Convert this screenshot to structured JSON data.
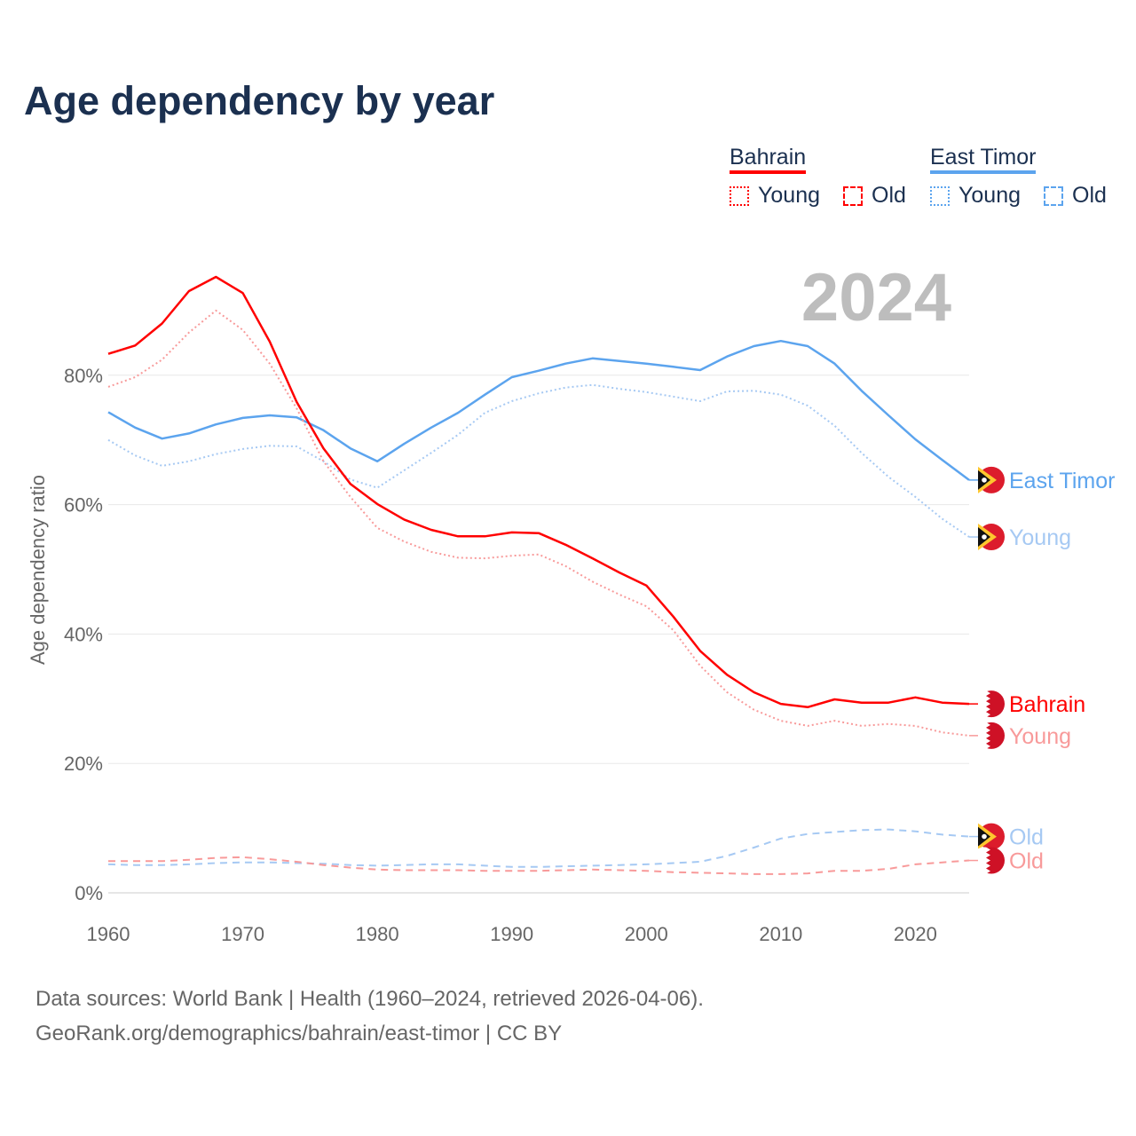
{
  "title": "Age dependency by year",
  "year_display": "2024",
  "legend": [
    {
      "country": "Bahrain",
      "color": "#ff0000",
      "young": "Young",
      "old": "Old"
    },
    {
      "country": "East Timor",
      "color": "#5ca4ee",
      "young": "Young",
      "old": "Old"
    }
  ],
  "footer": {
    "line1": "Data sources: World Bank | Health (1960–2024, retrieved 2026-04-06).",
    "line2": "GeoRank.org/demographics/bahrain/east-timor | CC BY"
  },
  "chart_data": {
    "type": "line",
    "title": "Age dependency by year",
    "xlabel": "",
    "ylabel": "Age dependency ratio",
    "xlim": [
      1960,
      2024
    ],
    "ylim": [
      0,
      100
    ],
    "x_ticks": [
      "1960",
      "1970",
      "1980",
      "1990",
      "2000",
      "2010",
      "2020"
    ],
    "y_ticks": [
      "0%",
      "20%",
      "40%",
      "60%",
      "80%"
    ],
    "grid": true,
    "x": [
      1960,
      1962,
      1964,
      1966,
      1968,
      1970,
      1972,
      1974,
      1976,
      1978,
      1980,
      1982,
      1984,
      1986,
      1988,
      1990,
      1992,
      1994,
      1996,
      1998,
      2000,
      2002,
      2004,
      2006,
      2008,
      2010,
      2012,
      2014,
      2016,
      2018,
      2020,
      2022,
      2024
    ],
    "series": [
      {
        "name": "East Timor",
        "end_label": "East Timor",
        "country": "east-timor",
        "style": "solid",
        "color": "#5ca4ee",
        "values": [
          74.3,
          71.9,
          70.2,
          71,
          72.4,
          73.4,
          73.8,
          73.5,
          71.5,
          68.7,
          66.7,
          69.4,
          71.9,
          74.2,
          77,
          79.7,
          80.7,
          81.8,
          82.6,
          82.2,
          81.8,
          81.3,
          80.8,
          82.9,
          84.5,
          85.3,
          84.5,
          81.8,
          77.6,
          73.8,
          70.1,
          66.9,
          63.8
        ]
      },
      {
        "name": "East Timor Young",
        "end_label": "Young",
        "country": "east-timor",
        "style": "dotted",
        "color": "#a6c9f3",
        "values": [
          70,
          67.6,
          66,
          66.7,
          67.8,
          68.6,
          69.1,
          69,
          66.7,
          63.9,
          62.6,
          65.3,
          68,
          70.8,
          74.2,
          76,
          77.2,
          78.1,
          78.5,
          77.9,
          77.4,
          76.7,
          76,
          77.5,
          77.6,
          77,
          75.3,
          72.2,
          68,
          64.3,
          61.2,
          57.8,
          55
        ]
      },
      {
        "name": "Bahrain",
        "end_label": "Bahrain",
        "country": "bahrain",
        "style": "solid",
        "color": "#ff0000",
        "values": [
          83.3,
          84.6,
          88,
          93,
          95.2,
          92.7,
          85.2,
          75.9,
          68.7,
          63.2,
          60.1,
          57.7,
          56.1,
          55.1,
          55.1,
          55.7,
          55.6,
          53.8,
          51.7,
          49.5,
          47.5,
          42.7,
          37.4,
          33.7,
          31,
          29.2,
          28.7,
          29.9,
          29.4,
          29.4,
          30.2,
          29.4,
          29.2
        ]
      },
      {
        "name": "Bahrain Young",
        "end_label": "Young",
        "country": "bahrain",
        "style": "dotted",
        "color": "#f89a9a",
        "values": [
          78.2,
          79.7,
          82.4,
          86.6,
          90,
          87,
          81.8,
          74.9,
          66.7,
          61.2,
          56.4,
          54.3,
          52.7,
          51.8,
          51.7,
          52.1,
          52.3,
          50.5,
          48.1,
          46.1,
          44.3,
          40.6,
          35.1,
          31,
          28.3,
          26.6,
          25.8,
          26.6,
          25.8,
          26.1,
          25.8,
          24.8,
          24.3
        ]
      },
      {
        "name": "East Timor Old",
        "end_label": "Old",
        "country": "east-timor",
        "style": "dashed",
        "color": "#a6c9f3",
        "values": [
          4.4,
          4.3,
          4.3,
          4.4,
          4.6,
          4.7,
          4.7,
          4.6,
          4.5,
          4.3,
          4.2,
          4.3,
          4.4,
          4.4,
          4.2,
          4.0,
          4.0,
          4.1,
          4.2,
          4.3,
          4.4,
          4.6,
          4.8,
          5.7,
          7.0,
          8.4,
          9.1,
          9.4,
          9.7,
          9.8,
          9.5,
          9.0,
          8.7
        ]
      },
      {
        "name": "Bahrain Old",
        "end_label": "Old",
        "country": "bahrain",
        "style": "dashed",
        "color": "#f89a9a",
        "values": [
          4.9,
          4.9,
          4.9,
          5.1,
          5.4,
          5.5,
          5.2,
          4.8,
          4.3,
          3.9,
          3.6,
          3.5,
          3.5,
          3.5,
          3.4,
          3.4,
          3.4,
          3.5,
          3.6,
          3.5,
          3.4,
          3.2,
          3.1,
          3.0,
          2.9,
          2.9,
          3.0,
          3.4,
          3.4,
          3.7,
          4.4,
          4.7,
          5.0
        ]
      }
    ]
  }
}
